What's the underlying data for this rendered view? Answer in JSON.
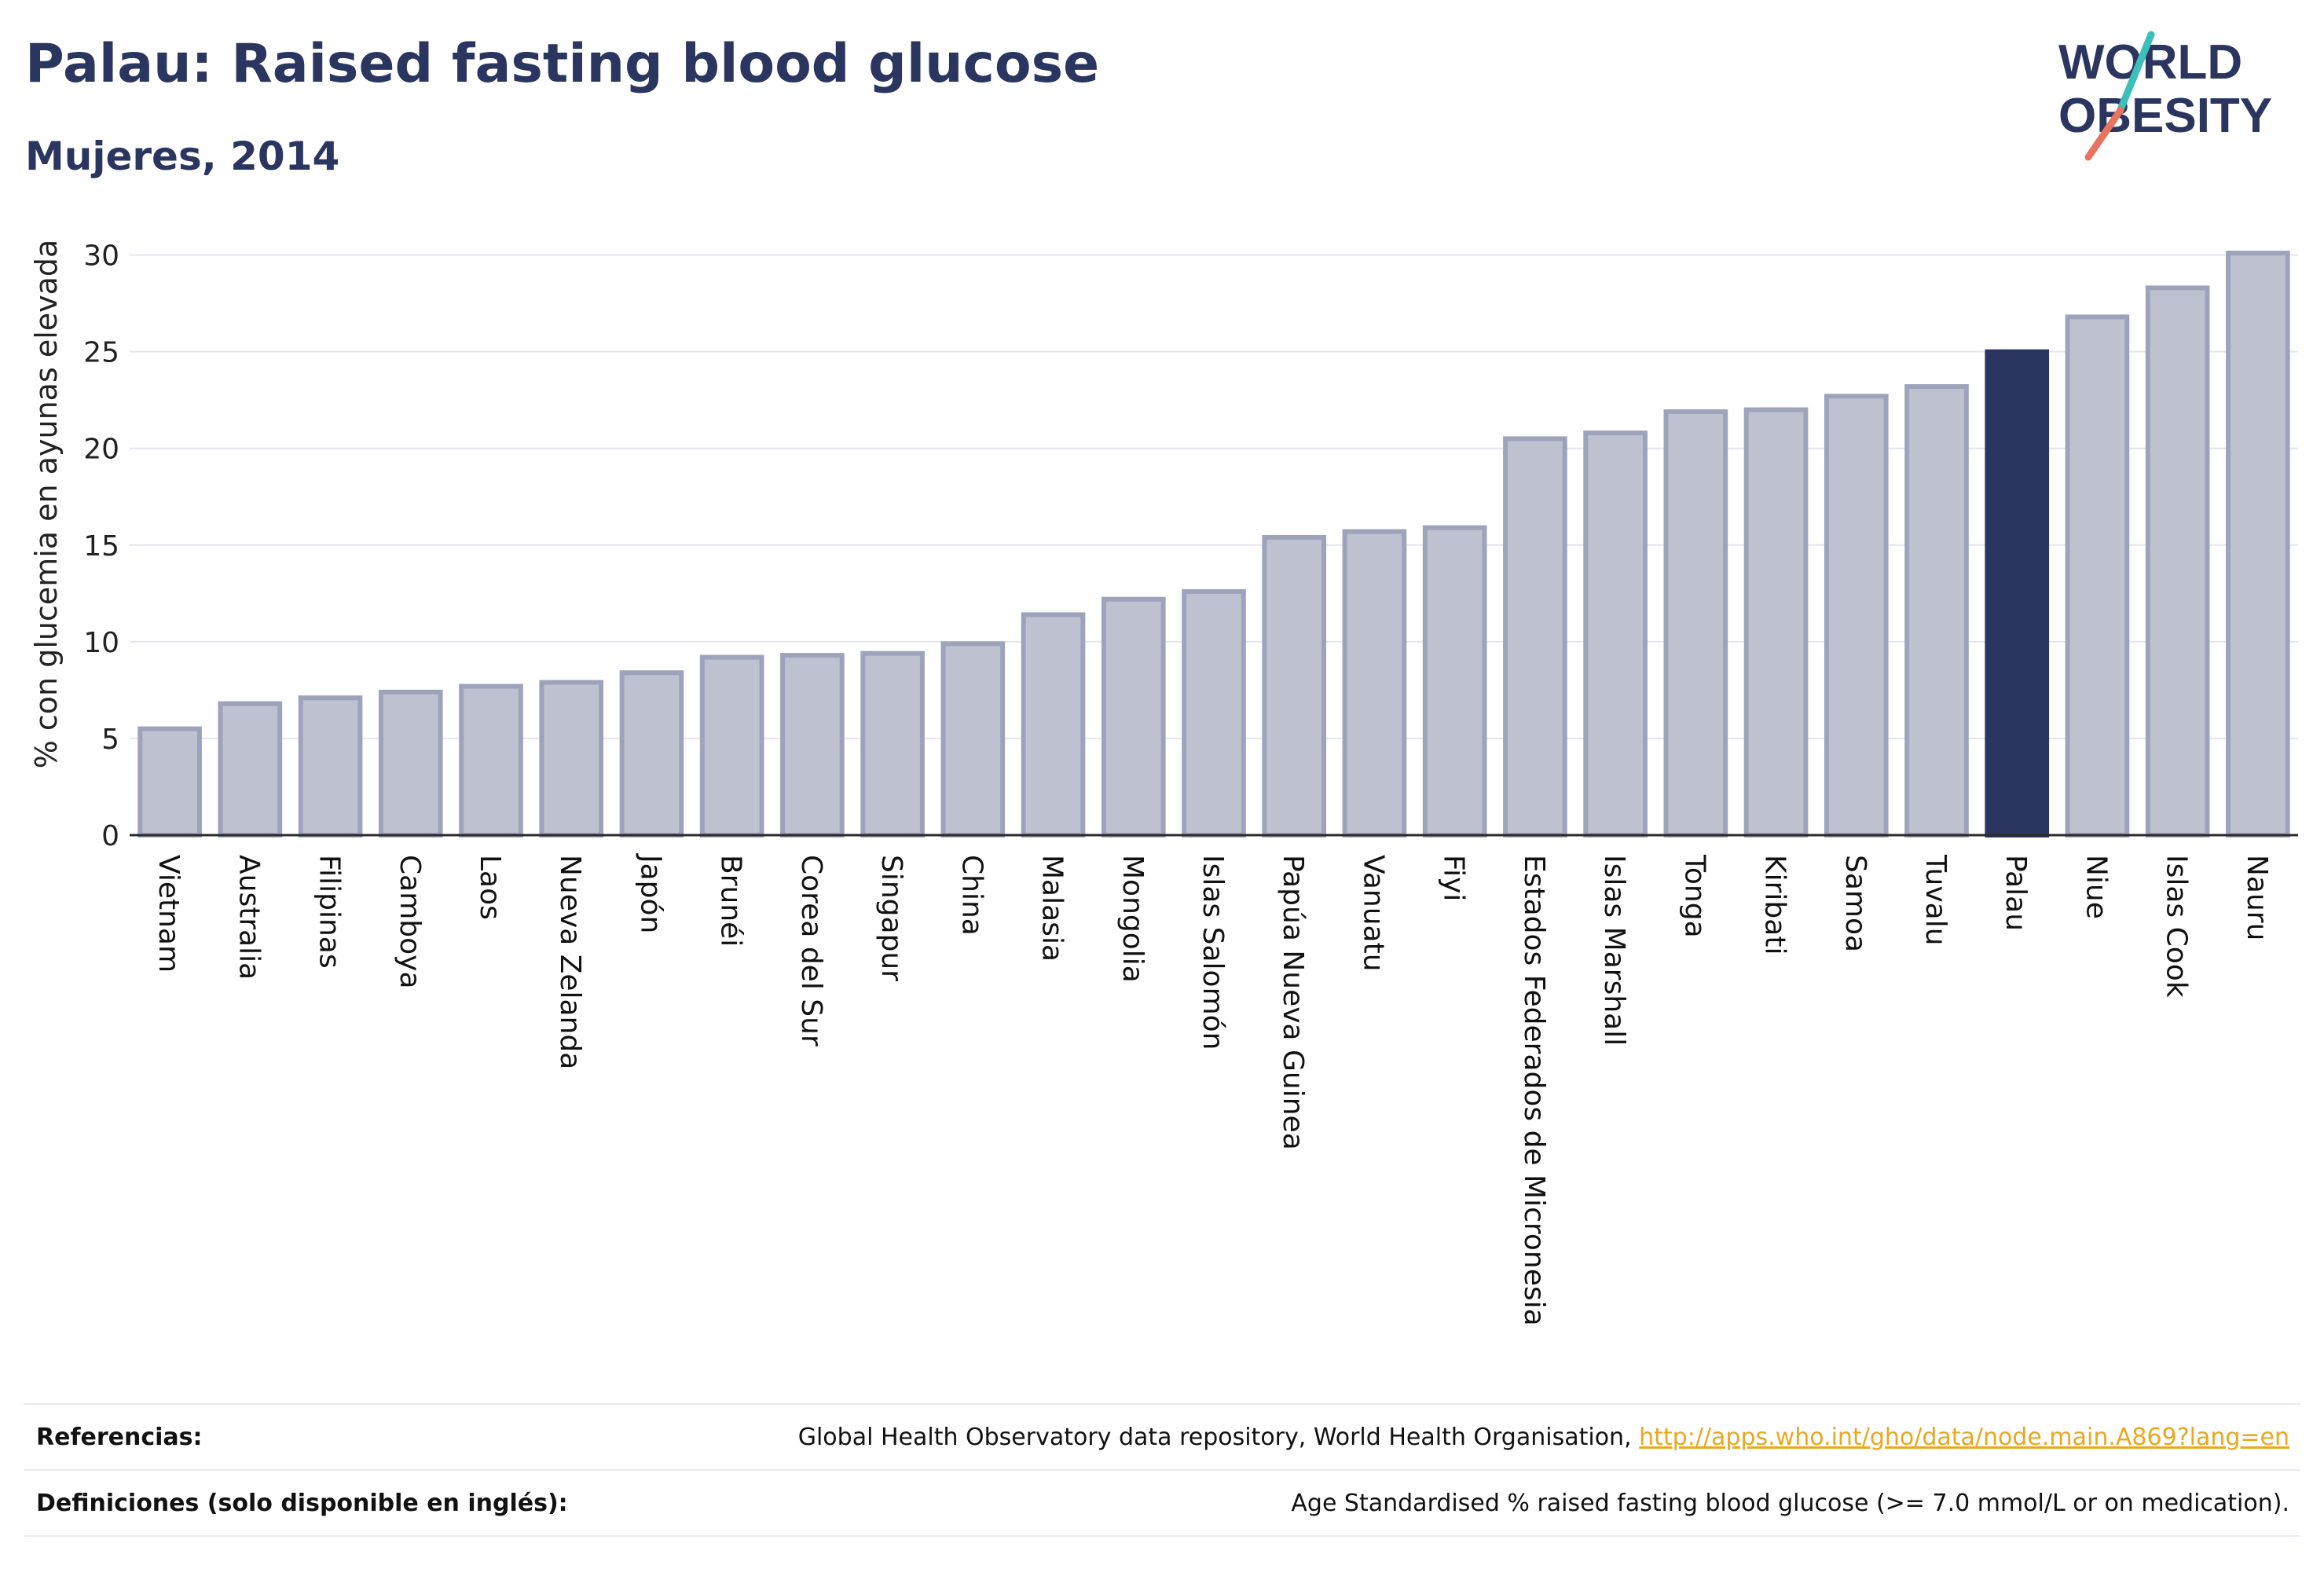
{
  "header": {
    "title": "Palau: Raised fasting blood glucose",
    "subtitle": "Mujeres, 2014"
  },
  "logo": {
    "line1": "WORLD",
    "line2": "OBESITY"
  },
  "colors": {
    "bar": "#bec1cf",
    "bar_stroke": "#9ea3bc",
    "highlight": "#2a3560",
    "grid": "#e4e6ee",
    "axis": "#2b2b2b",
    "logo_text": "#2a3560",
    "logo_teal": "#3cbfb9",
    "logo_coral": "#e8735f"
  },
  "chart_data": {
    "type": "bar",
    "title": "",
    "xlabel": "",
    "ylabel": "% con glucemia en ayunas elevada",
    "ylim": [
      0,
      31
    ],
    "yticks": [
      0,
      5,
      10,
      15,
      20,
      25,
      30
    ],
    "highlight": "Palau",
    "categories": [
      "Vietnam",
      "Australia",
      "Filipinas",
      "Camboya",
      "Laos",
      "Nueva Zelanda",
      "Japón",
      "Brunéi",
      "Corea del Sur",
      "Singapur",
      "China",
      "Malasia",
      "Mongolia",
      "Islas Salomón",
      "Papúa Nueva Guinea",
      "Vanuatu",
      "Fiyi",
      "Estados Federados de Micronesia",
      "Islas Marshall",
      "Tonga",
      "Kiribati",
      "Samoa",
      "Tuvalu",
      "Palau",
      "Niue",
      "Islas Cook",
      "Nauru"
    ],
    "values": [
      5.5,
      6.8,
      7.1,
      7.4,
      7.7,
      7.9,
      8.4,
      9.2,
      9.3,
      9.4,
      9.9,
      11.4,
      12.2,
      12.6,
      15.4,
      15.7,
      15.9,
      20.5,
      20.8,
      21.9,
      22.0,
      22.7,
      23.2,
      25.0,
      26.8,
      28.3,
      30.1
    ]
  },
  "footer": {
    "references_label": "Referencias:",
    "references_text": "Global Health Observatory data repository, World Health Organisation, ",
    "references_link": "http://apps.who.int/gho/data/node.main.A869?lang=en",
    "definitions_label": "Definiciones (solo disponible en inglés):",
    "definitions_text": "Age Standardised % raised fasting blood glucose (>= 7.0 mmol/L or on medication)."
  }
}
